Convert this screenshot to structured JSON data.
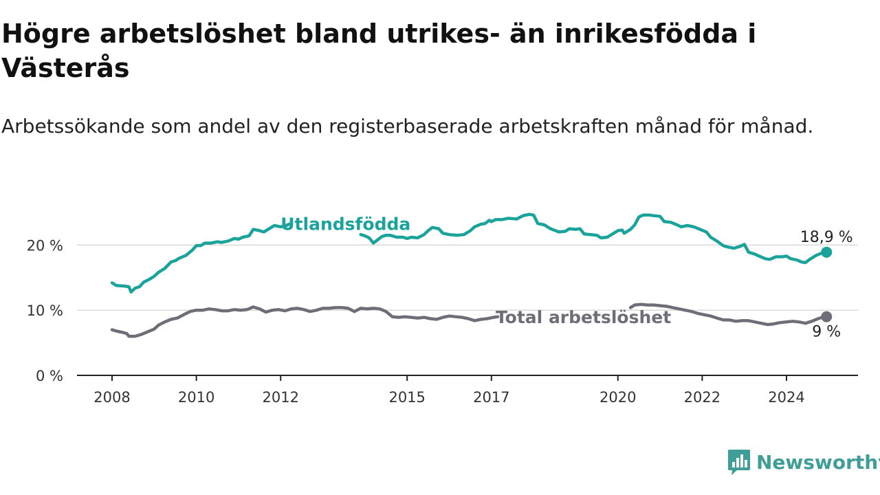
{
  "title": "Högre arbetslöshet bland utrikes- än inrikesfödda i Västerås",
  "subtitle": "Arbetssökande som andel av den registerbaserade arbetskraften månad för månad.",
  "brand": "Newsworthy",
  "colors": {
    "utlandsfodda": "#1aa39a",
    "total": "#6f6e78",
    "grid": "#d9d9d9",
    "axis": "#222222",
    "brand": "#3f9e97"
  },
  "chart_data": {
    "type": "line",
    "x_unit": "year (decimal)",
    "xlim": [
      2008,
      2025.1
    ],
    "ylim": [
      0,
      25
    ],
    "y_ticks": [
      {
        "value": 0,
        "label": "0 %"
      },
      {
        "value": 10,
        "label": "10 %"
      },
      {
        "value": 20,
        "label": "20 %"
      }
    ],
    "x_ticks": [
      {
        "value": 2008,
        "label": "2008"
      },
      {
        "value": 2010,
        "label": "2010"
      },
      {
        "value": 2012,
        "label": "2012"
      },
      {
        "value": 2015,
        "label": "2015"
      },
      {
        "value": 2017,
        "label": "2017"
      },
      {
        "value": 2020,
        "label": "2020"
      },
      {
        "value": 2022,
        "label": "2022"
      },
      {
        "value": 2024,
        "label": "2024"
      }
    ],
    "grid": true,
    "series": [
      {
        "name": "Utlandsfödda",
        "key": "utlandsfodda",
        "end_label": "18,9 %",
        "points": [
          [
            2008.0,
            14.2
          ],
          [
            2008.1,
            13.8
          ],
          [
            2008.3,
            13.7
          ],
          [
            2008.4,
            13.6
          ],
          [
            2008.45,
            12.8
          ],
          [
            2008.55,
            13.4
          ],
          [
            2008.65,
            13.6
          ],
          [
            2008.75,
            14.3
          ],
          [
            2008.9,
            14.8
          ],
          [
            2009.0,
            15.2
          ],
          [
            2009.1,
            15.8
          ],
          [
            2009.25,
            16.4
          ],
          [
            2009.4,
            17.4
          ],
          [
            2009.5,
            17.6
          ],
          [
            2009.6,
            18.0
          ],
          [
            2009.75,
            18.4
          ],
          [
            2009.9,
            19.2
          ],
          [
            2010.0,
            19.9
          ],
          [
            2010.1,
            19.9
          ],
          [
            2010.2,
            20.3
          ],
          [
            2010.35,
            20.3
          ],
          [
            2010.5,
            20.5
          ],
          [
            2010.6,
            20.4
          ],
          [
            2010.75,
            20.6
          ],
          [
            2010.9,
            21.0
          ],
          [
            2011.0,
            20.9
          ],
          [
            2011.1,
            21.2
          ],
          [
            2011.25,
            21.4
          ],
          [
            2011.35,
            22.4
          ],
          [
            2011.5,
            22.2
          ],
          [
            2011.6,
            22.0
          ],
          [
            2011.75,
            22.6
          ],
          [
            2011.85,
            23.0
          ],
          [
            2012.0,
            22.8
          ],
          [
            2012.1,
            22.9
          ],
          [
            2012.2,
            23.2
          ],
          [
            2013.9,
            21.6
          ],
          [
            2014.0,
            21.4
          ],
          [
            2014.1,
            21.1
          ],
          [
            2014.2,
            20.3
          ],
          [
            2014.3,
            20.8
          ],
          [
            2014.4,
            21.3
          ],
          [
            2014.5,
            21.5
          ],
          [
            2014.6,
            21.5
          ],
          [
            2014.75,
            21.2
          ],
          [
            2014.9,
            21.2
          ],
          [
            2015.0,
            21.0
          ],
          [
            2015.1,
            21.2
          ],
          [
            2015.25,
            21.1
          ],
          [
            2015.4,
            21.6
          ],
          [
            2015.5,
            22.2
          ],
          [
            2015.6,
            22.7
          ],
          [
            2015.75,
            22.5
          ],
          [
            2015.85,
            21.8
          ],
          [
            2016.0,
            21.6
          ],
          [
            2016.2,
            21.5
          ],
          [
            2016.35,
            21.6
          ],
          [
            2016.5,
            22.2
          ],
          [
            2016.6,
            22.8
          ],
          [
            2016.75,
            23.2
          ],
          [
            2016.85,
            23.3
          ],
          [
            2016.95,
            23.8
          ],
          [
            2017.0,
            23.6
          ],
          [
            2017.1,
            23.9
          ],
          [
            2017.25,
            23.9
          ],
          [
            2017.4,
            24.1
          ],
          [
            2017.6,
            24.0
          ],
          [
            2017.75,
            24.5
          ],
          [
            2017.9,
            24.7
          ],
          [
            2018.0,
            24.6
          ],
          [
            2018.1,
            23.3
          ],
          [
            2018.25,
            23.1
          ],
          [
            2018.4,
            22.5
          ],
          [
            2018.6,
            22.0
          ],
          [
            2018.75,
            22.1
          ],
          [
            2018.85,
            22.5
          ],
          [
            2019.0,
            22.4
          ],
          [
            2019.1,
            22.5
          ],
          [
            2019.2,
            21.7
          ],
          [
            2019.35,
            21.6
          ],
          [
            2019.5,
            21.5
          ],
          [
            2019.6,
            21.1
          ],
          [
            2019.75,
            21.2
          ],
          [
            2019.9,
            21.8
          ],
          [
            2020.0,
            22.2
          ],
          [
            2020.1,
            22.3
          ],
          [
            2020.15,
            21.8
          ],
          [
            2020.3,
            22.4
          ],
          [
            2020.4,
            23.1
          ],
          [
            2020.5,
            24.3
          ],
          [
            2020.6,
            24.6
          ],
          [
            2020.75,
            24.6
          ],
          [
            2020.85,
            24.5
          ],
          [
            2021.0,
            24.4
          ],
          [
            2021.1,
            23.6
          ],
          [
            2021.25,
            23.5
          ],
          [
            2021.4,
            23.1
          ],
          [
            2021.5,
            22.8
          ],
          [
            2021.65,
            23.0
          ],
          [
            2021.8,
            22.8
          ],
          [
            2021.95,
            22.4
          ],
          [
            2022.1,
            22.0
          ],
          [
            2022.2,
            21.2
          ],
          [
            2022.35,
            20.6
          ],
          [
            2022.5,
            19.9
          ],
          [
            2022.6,
            19.7
          ],
          [
            2022.75,
            19.5
          ],
          [
            2022.9,
            19.8
          ],
          [
            2023.0,
            20.1
          ],
          [
            2023.1,
            18.9
          ],
          [
            2023.25,
            18.6
          ],
          [
            2023.35,
            18.3
          ],
          [
            2023.5,
            17.9
          ],
          [
            2023.6,
            17.8
          ],
          [
            2023.75,
            18.2
          ],
          [
            2023.9,
            18.2
          ],
          [
            2024.0,
            18.3
          ],
          [
            2024.1,
            17.9
          ],
          [
            2024.25,
            17.7
          ],
          [
            2024.35,
            17.4
          ],
          [
            2024.45,
            17.3
          ],
          [
            2024.55,
            17.8
          ],
          [
            2024.7,
            18.4
          ],
          [
            2024.85,
            18.8
          ],
          [
            2024.95,
            18.9
          ]
        ]
      },
      {
        "name": "Total arbetslöshet",
        "key": "total",
        "end_label": "9 %",
        "points": [
          [
            2008.0,
            7.0
          ],
          [
            2008.1,
            6.8
          ],
          [
            2008.25,
            6.6
          ],
          [
            2008.35,
            6.4
          ],
          [
            2008.4,
            6.0
          ],
          [
            2008.55,
            6.0
          ],
          [
            2008.7,
            6.3
          ],
          [
            2008.85,
            6.7
          ],
          [
            2009.0,
            7.1
          ],
          [
            2009.1,
            7.7
          ],
          [
            2009.25,
            8.2
          ],
          [
            2009.4,
            8.6
          ],
          [
            2009.55,
            8.8
          ],
          [
            2009.7,
            9.3
          ],
          [
            2009.85,
            9.8
          ],
          [
            2010.0,
            10.0
          ],
          [
            2010.15,
            10.0
          ],
          [
            2010.3,
            10.2
          ],
          [
            2010.45,
            10.1
          ],
          [
            2010.6,
            9.9
          ],
          [
            2010.75,
            9.9
          ],
          [
            2010.9,
            10.1
          ],
          [
            2011.05,
            10.0
          ],
          [
            2011.2,
            10.1
          ],
          [
            2011.35,
            10.5
          ],
          [
            2011.5,
            10.2
          ],
          [
            2011.65,
            9.7
          ],
          [
            2011.8,
            10.0
          ],
          [
            2011.95,
            10.1
          ],
          [
            2012.1,
            9.9
          ],
          [
            2012.25,
            10.2
          ],
          [
            2012.4,
            10.3
          ],
          [
            2012.55,
            10.1
          ],
          [
            2012.7,
            9.8
          ],
          [
            2012.85,
            10.0
          ],
          [
            2013.0,
            10.3
          ],
          [
            2013.15,
            10.3
          ],
          [
            2013.3,
            10.4
          ],
          [
            2013.45,
            10.4
          ],
          [
            2013.6,
            10.3
          ],
          [
            2013.75,
            9.8
          ],
          [
            2013.9,
            10.3
          ],
          [
            2014.05,
            10.2
          ],
          [
            2014.2,
            10.3
          ],
          [
            2014.35,
            10.2
          ],
          [
            2014.5,
            9.8
          ],
          [
            2014.65,
            9.0
          ],
          [
            2014.8,
            8.9
          ],
          [
            2014.95,
            9.0
          ],
          [
            2015.1,
            8.9
          ],
          [
            2015.25,
            8.8
          ],
          [
            2015.4,
            8.9
          ],
          [
            2015.55,
            8.7
          ],
          [
            2015.7,
            8.6
          ],
          [
            2015.85,
            8.9
          ],
          [
            2016.0,
            9.1
          ],
          [
            2016.15,
            9.0
          ],
          [
            2016.3,
            8.9
          ],
          [
            2016.45,
            8.7
          ],
          [
            2016.6,
            8.4
          ],
          [
            2016.75,
            8.6
          ],
          [
            2016.9,
            8.7
          ],
          [
            2017.05,
            8.9
          ],
          [
            2017.15,
            9.0
          ],
          [
            2020.3,
            10.4
          ],
          [
            2020.4,
            10.8
          ],
          [
            2020.55,
            10.9
          ],
          [
            2020.7,
            10.8
          ],
          [
            2020.85,
            10.8
          ],
          [
            2021.0,
            10.7
          ],
          [
            2021.15,
            10.6
          ],
          [
            2021.3,
            10.4
          ],
          [
            2021.45,
            10.2
          ],
          [
            2021.6,
            10.0
          ],
          [
            2021.75,
            9.8
          ],
          [
            2021.9,
            9.5
          ],
          [
            2022.05,
            9.3
          ],
          [
            2022.2,
            9.1
          ],
          [
            2022.35,
            8.8
          ],
          [
            2022.5,
            8.5
          ],
          [
            2022.65,
            8.5
          ],
          [
            2022.8,
            8.3
          ],
          [
            2022.95,
            8.4
          ],
          [
            2023.1,
            8.4
          ],
          [
            2023.25,
            8.2
          ],
          [
            2023.4,
            8.0
          ],
          [
            2023.55,
            7.8
          ],
          [
            2023.7,
            7.9
          ],
          [
            2023.85,
            8.1
          ],
          [
            2024.0,
            8.2
          ],
          [
            2024.15,
            8.3
          ],
          [
            2024.3,
            8.2
          ],
          [
            2024.45,
            8.0
          ],
          [
            2024.6,
            8.3
          ],
          [
            2024.75,
            8.7
          ],
          [
            2024.9,
            9.0
          ],
          [
            2024.95,
            9.0
          ]
        ]
      }
    ]
  }
}
